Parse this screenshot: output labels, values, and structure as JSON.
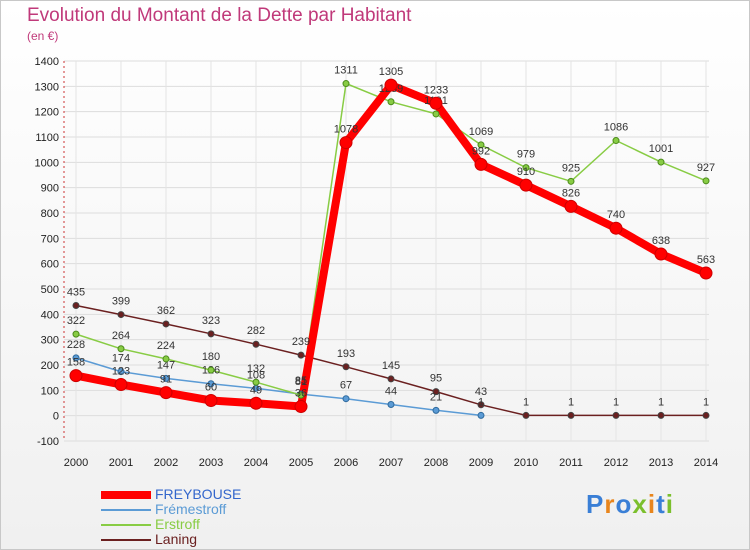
{
  "title": "Evolution du Montant de la Dette par Habitant",
  "subtitle": "(en €)",
  "logo": "Proxiti",
  "chart_data": {
    "type": "line",
    "title": "Evolution du Montant de la Dette par Habitant",
    "ylabel": "(en €)",
    "x": [
      2000,
      2001,
      2002,
      2003,
      2004,
      2005,
      2006,
      2007,
      2008,
      2009,
      2010,
      2011,
      2012,
      2013,
      2014
    ],
    "ylim": [
      -100,
      1400
    ],
    "yticks": [
      -100,
      0,
      100,
      200,
      300,
      400,
      500,
      600,
      700,
      800,
      900,
      1000,
      1100,
      1200,
      1300,
      1400
    ],
    "series": [
      {
        "name": "Laning",
        "color": "#6b2020",
        "values": [
          435,
          399,
          362,
          323,
          282,
          239,
          193,
          145,
          95,
          43,
          1,
          1,
          1,
          1,
          1
        ]
      },
      {
        "name": "Frémestroff",
        "color": "#5b9bd5",
        "values": [
          228,
          174,
          147,
          126,
          108,
          85,
          67,
          44,
          21,
          1,
          null,
          null,
          null,
          null,
          null
        ]
      },
      {
        "name": "Erstroff",
        "color": "#88cc44",
        "values": [
          322,
          264,
          224,
          180,
          132,
          81,
          1311,
          1239,
          1191,
          1069,
          979,
          925,
          1086,
          1001,
          927
        ]
      },
      {
        "name": "FREYBOUSE",
        "color": "#ff0000",
        "values": [
          158,
          123,
          91,
          60,
          49,
          36,
          1078,
          1305,
          1233,
          992,
          910,
          826,
          740,
          638,
          563
        ]
      }
    ],
    "legend": [
      "FREYBOUSE",
      "Frémestroff",
      "Erstroff",
      "Laning"
    ]
  }
}
